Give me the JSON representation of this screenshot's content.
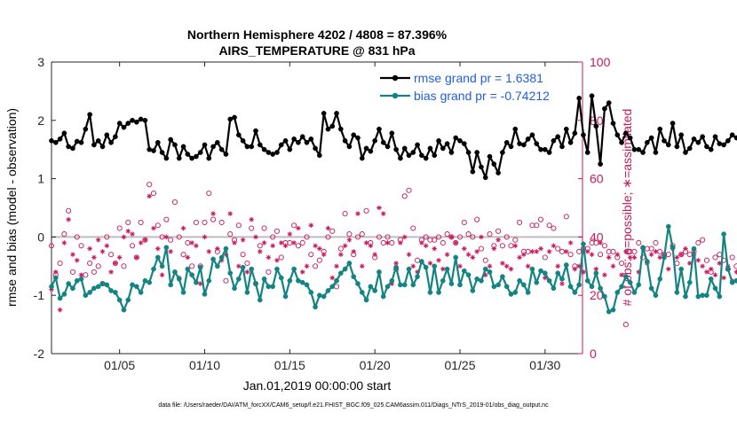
{
  "chart_data": {
    "type": "line",
    "title_line1": "Northern Hemisphere 4202 / 4808 = 87.396%",
    "title_line2": "AIRS_TEMPERATURE @ 831 hPa",
    "xlabel": "Jan.01,2019 00:00:00 start",
    "ylabel_left": "rmse and bias (model - observation)",
    "ylabel_right": "# of obs: o=possible; ∗=assimilated",
    "footer": "data file: /Users/raeder/DAI/ATM_forcXX/CAM6_setup/f.e21.FHIST_BGC.f09_025.CAM6assim.011/Diags_NTrS_2019-01/obs_diag_output.nc",
    "xlim": [
      1,
      32.2
    ],
    "ylim_left": [
      -2,
      3
    ],
    "ylim_right": [
      0,
      100
    ],
    "x_ticks": [
      5,
      10,
      15,
      20,
      25,
      30
    ],
    "x_tick_labels": [
      "01/05",
      "01/10",
      "01/15",
      "01/20",
      "01/25",
      "01/30"
    ],
    "y_left_ticks": [
      -2,
      -1,
      0,
      1,
      2,
      3
    ],
    "y_left_tick_labels": [
      "-2",
      "-1",
      "0",
      "1",
      "2",
      "3"
    ],
    "y_right_ticks": [
      0,
      20,
      40,
      60,
      80,
      100
    ],
    "y_right_tick_labels": [
      "0",
      "20",
      "40",
      "60",
      "80",
      "100"
    ],
    "zero_line": 0,
    "x_start": 1.0,
    "x_step": 0.25,
    "series": [
      {
        "name": "rmse grand pr = 1.6381",
        "axis": "left",
        "color": "#000000",
        "values": [
          1.65,
          1.62,
          1.68,
          1.78,
          1.55,
          1.52,
          1.64,
          1.62,
          1.85,
          2.1,
          1.58,
          1.65,
          1.55,
          1.75,
          1.62,
          1.72,
          1.95,
          1.88,
          1.95,
          2.0,
          1.97,
          2.02,
          2.0,
          1.5,
          1.48,
          1.62,
          1.45,
          1.35,
          1.67,
          1.58,
          1.35,
          1.55,
          1.42,
          1.35,
          1.38,
          1.45,
          1.58,
          1.35,
          1.55,
          1.62,
          1.5,
          1.42,
          2.02,
          2.05,
          1.75,
          1.65,
          1.55,
          1.55,
          1.82,
          1.58,
          1.5,
          1.45,
          1.42,
          1.45,
          1.58,
          1.65,
          1.5,
          1.68,
          1.62,
          1.72,
          1.62,
          1.68,
          1.52,
          1.4,
          2.12,
          1.85,
          1.9,
          2.12,
          1.85,
          1.65,
          1.55,
          1.75,
          1.7,
          1.35,
          1.52,
          1.47,
          1.65,
          1.85,
          1.62,
          1.55,
          1.78,
          1.5,
          1.35,
          1.52,
          1.4,
          1.45,
          1.58,
          1.4,
          1.35,
          1.52,
          1.4,
          1.65,
          1.52,
          1.6,
          1.45,
          1.7,
          1.65,
          1.6,
          1.45,
          1.12,
          1.45,
          1.2,
          1.02,
          1.38,
          1.25,
          1.1,
          1.45,
          1.62,
          1.55,
          1.85,
          1.6,
          1.58,
          1.68,
          1.75,
          1.6,
          1.5,
          1.5,
          1.45,
          1.65,
          1.72,
          1.55,
          1.85,
          1.62,
          1.78,
          2.38,
          1.75,
          1.45,
          2.42,
          1.9,
          1.25,
          2.2,
          2.3,
          1.95,
          1.75,
          1.62,
          1.78,
          1.7,
          1.5,
          1.5,
          1.45,
          1.62,
          1.7,
          1.45,
          1.85,
          1.65,
          1.58,
          1.95,
          1.55,
          1.75,
          1.45,
          1.52,
          1.68,
          1.62,
          1.72,
          1.55,
          1.5,
          1.72,
          1.6,
          1.58,
          1.65,
          1.75,
          1.7
        ]
      },
      {
        "name": "bias grand pr = -0.74212",
        "axis": "left",
        "color": "#138484",
        "values": [
          -0.85,
          -0.7,
          -1.05,
          -0.98,
          -0.8,
          -0.88,
          -0.75,
          -0.72,
          -1.0,
          -0.95,
          -0.88,
          -0.85,
          -0.8,
          -0.82,
          -0.92,
          -0.95,
          -1.08,
          -1.25,
          -1.08,
          -0.82,
          -0.85,
          -0.95,
          -0.75,
          -0.78,
          -0.55,
          -0.35,
          -0.5,
          -0.18,
          -0.82,
          -0.6,
          -0.72,
          -0.95,
          -0.55,
          -0.65,
          -0.78,
          -0.52,
          -0.98,
          -0.75,
          -0.38,
          -0.5,
          -0.35,
          -0.2,
          -0.62,
          -0.88,
          -0.72,
          -0.52,
          -0.95,
          -0.55,
          -0.8,
          -1.08,
          -0.72,
          -0.85,
          -0.85,
          -0.55,
          -0.7,
          -1.02,
          -0.75,
          -0.55,
          -0.75,
          -0.78,
          -0.82,
          -0.95,
          -1.2,
          -1.0,
          -1.02,
          -0.92,
          -0.85,
          -0.75,
          -0.62,
          -0.55,
          -0.45,
          -0.68,
          -0.8,
          -0.95,
          -1.08,
          -0.85,
          -0.92,
          -0.6,
          -1.02,
          -0.85,
          -0.75,
          -0.52,
          -0.82,
          -0.82,
          -0.55,
          -0.82,
          -0.68,
          -0.42,
          -0.52,
          -0.95,
          -0.5,
          -0.95,
          -0.75,
          -0.55,
          -0.8,
          -0.35,
          -0.82,
          -0.58,
          -0.65,
          -0.92,
          -0.72,
          -0.75,
          -0.55,
          -0.6,
          -0.85,
          -0.82,
          -0.68,
          -0.85,
          -0.98,
          -0.95,
          -0.75,
          -0.82,
          -0.95,
          -0.55,
          -0.78,
          -0.58,
          -0.62,
          -0.75,
          -0.88,
          -0.62,
          -0.72,
          -0.48,
          -0.85,
          -0.95,
          -0.82,
          -0.12,
          -0.75,
          -0.85,
          -0.62,
          -0.88,
          -1.02,
          -1.28,
          -1.25,
          -0.95,
          -0.85,
          -0.68,
          -0.78,
          -0.95,
          -0.82,
          -0.18,
          -0.42,
          -0.88,
          -1.0,
          -0.72,
          -0.35,
          0.18,
          -0.18,
          -0.95,
          -0.55,
          -1.02,
          -0.78,
          -0.2,
          -1.02,
          -1.0,
          -1.0,
          -0.72,
          -0.88,
          -1.02,
          0.05,
          -0.55,
          -0.78,
          -0.75
        ]
      }
    ],
    "obs_possible": {
      "axis": "right",
      "marker": "circle",
      "values": [
        37,
        27,
        31,
        41,
        49,
        28,
        40,
        37,
        27,
        31,
        28,
        30,
        24,
        40,
        34,
        31,
        43,
        30,
        45,
        37,
        33,
        45,
        39,
        58,
        55,
        44,
        40,
        46,
        39,
        52,
        40,
        34,
        38,
        30,
        45,
        30,
        45,
        55,
        46,
        35,
        45,
        25,
        41,
        39,
        44,
        34,
        31,
        43,
        24,
        37,
        43,
        28,
        40,
        42,
        33,
        38,
        38,
        44,
        37,
        38,
        40,
        34,
        30,
        32,
        35,
        40,
        42,
        23,
        36,
        48,
        41,
        34,
        40,
        41,
        49,
        38,
        33,
        40,
        38,
        40,
        38,
        29,
        39,
        54,
        56,
        43,
        32,
        39,
        40,
        39,
        39,
        40,
        38,
        41,
        40,
        38,
        40,
        45,
        41,
        40,
        46,
        36,
        32,
        41,
        37,
        42,
        37,
        40,
        37,
        39,
        45,
        35,
        35,
        44,
        44,
        46,
        33,
        44,
        43,
        36,
        35,
        47,
        34,
        30,
        35,
        36,
        36,
        38,
        38,
        34,
        37,
        35,
        35,
        33,
        31,
        10,
        35,
        35,
        38,
        33,
        36,
        36,
        38,
        35,
        34,
        34,
        37,
        31,
        34,
        35,
        34,
        35,
        38,
        39,
        32,
        28,
        33,
        34,
        32,
        29,
        33,
        30
      ]
    },
    "obs_assimilated": {
      "axis": "right",
      "marker": "asterisk",
      "values": [
        22,
        28,
        15,
        38,
        46,
        34,
        32,
        27,
        20,
        36,
        33,
        39,
        35,
        37,
        28,
        31,
        33,
        40,
        42,
        41,
        33,
        38,
        39,
        54,
        43,
        36,
        27,
        40,
        35,
        28,
        26,
        43,
        33,
        38,
        37,
        24,
        40,
        35,
        48,
        36,
        32,
        34,
        48,
        38,
        30,
        39,
        28,
        46,
        40,
        35,
        38,
        33,
        37,
        32,
        38,
        37,
        41,
        38,
        43,
        28,
        30,
        44,
        37,
        36,
        34,
        43,
        26,
        30,
        34,
        37,
        39,
        35,
        48,
        30,
        38,
        37,
        34,
        50,
        48,
        38,
        24,
        31,
        38,
        40,
        34,
        30,
        28,
        38,
        37,
        31,
        36,
        32,
        29,
        34,
        40,
        38,
        30,
        36,
        34,
        33,
        35,
        40,
        27,
        30,
        36,
        39,
        31,
        30,
        29,
        37,
        33,
        34,
        30,
        35,
        35,
        36,
        26,
        35,
        37,
        30,
        24,
        35,
        38,
        29,
        30,
        28,
        35,
        34,
        29,
        38,
        27,
        33,
        30,
        34,
        27,
        35,
        33,
        33,
        28,
        36,
        31,
        34,
        35,
        33,
        34,
        29,
        36,
        33,
        34,
        36,
        31,
        34,
        32,
        30,
        28,
        29,
        27,
        31,
        26,
        30,
        25,
        28
      ]
    }
  }
}
